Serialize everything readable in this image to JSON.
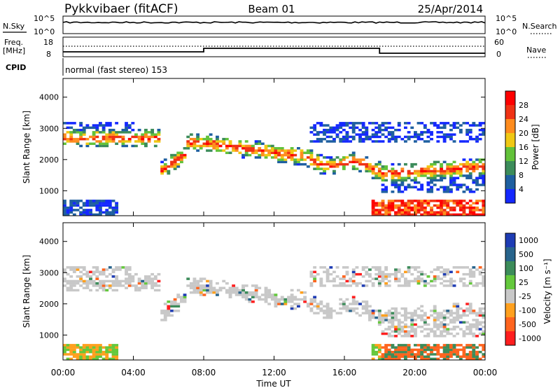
{
  "header": {
    "station": "Pykkvibaer (fitACF)",
    "beam": "Beam 01",
    "date": "25/Apr/2014"
  },
  "top_panels": {
    "nsky_label": "N.Sky",
    "nsky_ticks": [
      "10^5",
      "10^0"
    ],
    "nsearch_label": "N.Search",
    "nsearch_ticks": [
      "10^5",
      "10^0"
    ],
    "freq_label": "Freq.",
    "freq_unit": "[MHz]",
    "freq_ticks": [
      "18",
      "8"
    ],
    "nave_label": "Nave",
    "nave_ticks": [
      "60",
      "0"
    ],
    "cpid_label": "CPID",
    "cpid_text": "normal (fast stereo) 153"
  },
  "chart_data": [
    {
      "type": "heatmap",
      "name": "power",
      "ylabel": "Slant Range [km]",
      "ylim": [
        200,
        4600
      ],
      "yticks": [
        "1000",
        "2000",
        "3000",
        "4000"
      ],
      "xlim": [
        0,
        24
      ],
      "colorbar_label": "Power [dB]",
      "colorbar_ticks": [
        "4",
        "8",
        "12",
        "16",
        "20",
        "24",
        "28"
      ],
      "colors": [
        "#1428ff",
        "#1e5fa0",
        "#3c8c5a",
        "#62c23a",
        "#f0c814",
        "#ff8c1e",
        "#f03214",
        "#ff0000"
      ]
    },
    {
      "type": "heatmap",
      "name": "velocity",
      "ylabel": "Slant Range [km]",
      "ylim": [
        200,
        4600
      ],
      "yticks": [
        "1000",
        "2000",
        "3000",
        "4000"
      ],
      "xlim": [
        0,
        24
      ],
      "xticks": [
        "00:00",
        "04:00",
        "08:00",
        "12:00",
        "16:00",
        "20:00",
        "00:00"
      ],
      "xlabel": "Time UT",
      "colorbar_label": "Velocity [m s⁻¹]",
      "colorbar_ticks": [
        "1000",
        "500",
        "100",
        "25",
        "-25",
        "-100",
        "-500",
        "-1000"
      ],
      "colors": [
        "#1e3cb4",
        "#28648c",
        "#3c8c5a",
        "#64c83c",
        "#c8c8c8",
        "#ffa01e",
        "#ff641e",
        "#ff1e1e"
      ]
    }
  ]
}
